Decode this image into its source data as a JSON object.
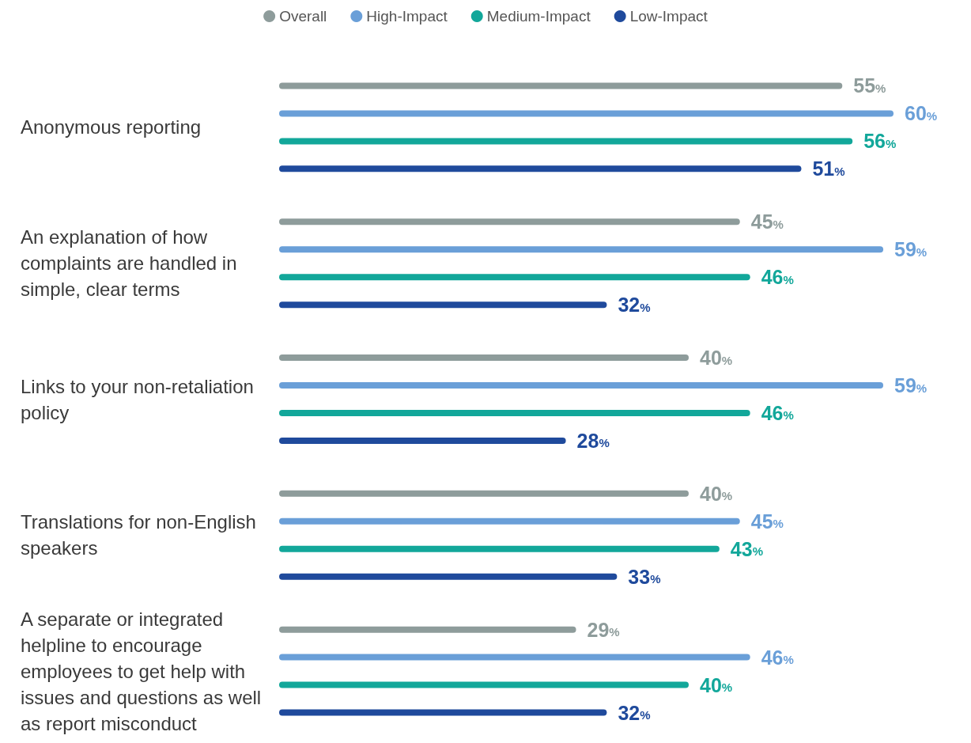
{
  "chart_data": {
    "type": "bar",
    "orientation": "horizontal",
    "legend": "top",
    "categories": [
      "Anonymous reporting",
      "An explanation of how complaints are handled in simple, clear terms",
      "Links to your non-retaliation policy",
      "Translations for non-English speakers",
      "A separate or integrated helpline to encourage employees to get help with issues and questions as well as report misconduct"
    ],
    "series": [
      {
        "name": "Overall",
        "color": "#8e9c9b",
        "values": [
          55,
          45,
          40,
          40,
          29
        ],
        "value_labels": [
          "55%",
          "45%",
          "40%",
          "40%",
          "29%"
        ]
      },
      {
        "name": "High-Impact",
        "color": "#6a9fd8",
        "values": [
          60,
          59,
          59,
          45,
          46
        ],
        "value_labels": [
          "60%",
          "59%",
          "59%",
          "45%",
          "46%"
        ]
      },
      {
        "name": "Medium-Impact",
        "color": "#12a79a",
        "values": [
          56,
          46,
          46,
          43,
          40
        ],
        "value_labels": [
          "56%",
          "46%",
          "46%",
          "43%",
          "40%"
        ]
      },
      {
        "name": "Low-Impact",
        "color": "#1f4a9c",
        "values": [
          51,
          32,
          28,
          33,
          32
        ],
        "value_labels": [
          "51%",
          "32%",
          "28%",
          "33%",
          "32%"
        ]
      }
    ]
  }
}
